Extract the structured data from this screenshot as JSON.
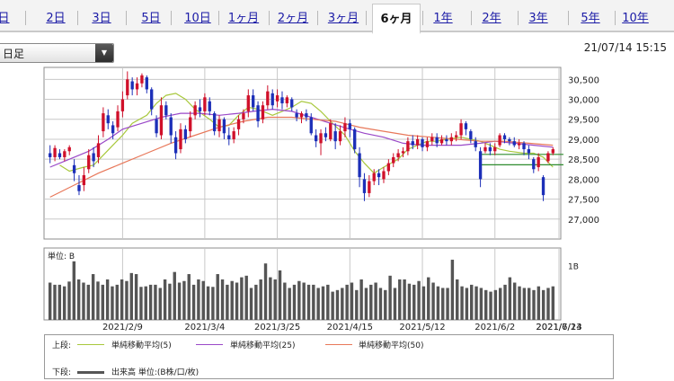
{
  "tabs": [
    {
      "label": "日",
      "active": false
    },
    {
      "label": "2日",
      "active": false
    },
    {
      "label": "3日",
      "active": false
    },
    {
      "label": "5日",
      "active": false
    },
    {
      "label": "10日",
      "active": false
    },
    {
      "label": "1ヶ月",
      "active": false
    },
    {
      "label": "2ヶ月",
      "active": false
    },
    {
      "label": "3ヶ月",
      "active": false
    },
    {
      "label": "6ヶ月",
      "active": true
    },
    {
      "label": "1年",
      "active": false
    },
    {
      "label": "2年",
      "active": false
    },
    {
      "label": "3年",
      "active": false
    },
    {
      "label": "5年",
      "active": false
    },
    {
      "label": "10年",
      "active": false
    }
  ],
  "period_select": {
    "value": "日足",
    "arrow_icon": "triangle-down-icon"
  },
  "timestamp": "21/07/14 15:15",
  "legend": {
    "upper_label": "上段:",
    "lower_label": "下段:",
    "items": [
      {
        "label": "単純移動平均(5)",
        "color": "#a8c83c"
      },
      {
        "label": "単純移動平均(25)",
        "color": "#9a48c8"
      },
      {
        "label": "単純移動平均(50)",
        "color": "#e8785a"
      }
    ],
    "volume_label": "出来高 単位:(B株/口/枚)",
    "volume_color": "#555555"
  },
  "chart_data": {
    "type": "candlestick",
    "price": {
      "ylim": [
        26500,
        30800
      ],
      "y_ticks": [
        "30,500",
        "30,000",
        "29,500",
        "29,000",
        "28,500",
        "28,000",
        "27,500",
        "27,000"
      ],
      "tick_values": [
        30500,
        30000,
        29500,
        29000,
        28500,
        28000,
        27500,
        27000
      ],
      "up_color": "#d0102a",
      "down_color": "#1c2fb8",
      "candles": [
        [
          28650,
          28550,
          28850,
          28400
        ],
        [
          28550,
          28780,
          28850,
          28450
        ],
        [
          28650,
          28550,
          28750,
          28500
        ],
        [
          28550,
          28700,
          28750,
          28450
        ],
        [
          28700,
          28800,
          28850,
          28600
        ],
        [
          28350,
          28150,
          28500,
          27950
        ],
        [
          27850,
          27700,
          28100,
          27600
        ],
        [
          27850,
          28100,
          28300,
          27700
        ],
        [
          28250,
          28600,
          28750,
          28150
        ],
        [
          28650,
          28450,
          28800,
          28300
        ],
        [
          28550,
          28900,
          29100,
          28400
        ],
        [
          29200,
          29650,
          29800,
          29050
        ],
        [
          29600,
          29400,
          29750,
          29250
        ],
        [
          29350,
          29150,
          29450,
          29000
        ],
        [
          29300,
          29700,
          29850,
          29200
        ],
        [
          29700,
          30000,
          30200,
          29550
        ],
        [
          30100,
          30500,
          30700,
          30000
        ],
        [
          30450,
          30250,
          30550,
          30100
        ],
        [
          30250,
          30400,
          30550,
          30100
        ],
        [
          30400,
          30600,
          30650,
          30300
        ],
        [
          30550,
          30250,
          30600,
          30150
        ],
        [
          30250,
          29750,
          30300,
          29600
        ],
        [
          29500,
          29150,
          29600,
          29050
        ],
        [
          29100,
          29850,
          30050,
          29000
        ],
        [
          29850,
          29600,
          29950,
          29500
        ],
        [
          29550,
          29100,
          29650,
          28900
        ],
        [
          29050,
          28650,
          29200,
          28500
        ],
        [
          28750,
          29250,
          29400,
          28650
        ],
        [
          29250,
          29000,
          29350,
          28900
        ],
        [
          29200,
          29550,
          29700,
          29050
        ],
        [
          29600,
          29850,
          29950,
          29500
        ],
        [
          29800,
          29700,
          30000,
          29550
        ],
        [
          29700,
          30050,
          30150,
          29600
        ],
        [
          29950,
          29700,
          30050,
          29600
        ],
        [
          29650,
          29200,
          29700,
          29100
        ],
        [
          29200,
          29500,
          29600,
          29050
        ],
        [
          29500,
          29150,
          29550,
          29000
        ],
        [
          29100,
          29000,
          29300,
          28850
        ],
        [
          29000,
          29200,
          29300,
          28900
        ],
        [
          29250,
          29500,
          29600,
          29100
        ],
        [
          29500,
          29650,
          29750,
          29400
        ],
        [
          29700,
          30100,
          30250,
          29550
        ],
        [
          30100,
          29800,
          30250,
          29700
        ],
        [
          29850,
          29450,
          29950,
          29300
        ],
        [
          29500,
          29850,
          29950,
          29400
        ],
        [
          29850,
          30200,
          30350,
          29750
        ],
        [
          30150,
          29850,
          30250,
          29750
        ],
        [
          29950,
          30100,
          30250,
          29800
        ],
        [
          30050,
          29900,
          30200,
          29750
        ],
        [
          29900,
          30050,
          30100,
          29800
        ],
        [
          30000,
          29800,
          30050,
          29700
        ],
        [
          29650,
          29550,
          29750,
          29450
        ],
        [
          29550,
          29650,
          29700,
          29400
        ],
        [
          29650,
          29550,
          29750,
          29450
        ],
        [
          29550,
          29150,
          29650,
          29100
        ],
        [
          29100,
          28950,
          29250,
          28800
        ],
        [
          28900,
          29150,
          29250,
          28600
        ],
        [
          29150,
          29050,
          29300,
          28950
        ],
        [
          29000,
          29400,
          29500,
          28950
        ],
        [
          29200,
          28950,
          29400,
          28750
        ],
        [
          28950,
          29200,
          29350,
          28850
        ],
        [
          29200,
          29400,
          29550,
          29050
        ],
        [
          29400,
          29250,
          29500,
          29050
        ],
        [
          29250,
          28750,
          29300,
          28650
        ],
        [
          28650,
          28050,
          28800,
          27800
        ],
        [
          28000,
          27650,
          28150,
          27450
        ],
        [
          27650,
          27950,
          28100,
          27550
        ],
        [
          27950,
          28150,
          28250,
          27850
        ],
        [
          28150,
          28050,
          28250,
          27850
        ],
        [
          28000,
          28200,
          28300,
          27900
        ],
        [
          28200,
          28400,
          28500,
          28100
        ],
        [
          28400,
          28550,
          28650,
          28300
        ],
        [
          28550,
          28650,
          28750,
          28450
        ],
        [
          28650,
          28700,
          28800,
          28550
        ],
        [
          28700,
          28950,
          29050,
          28600
        ],
        [
          28950,
          28850,
          29100,
          28750
        ],
        [
          28850,
          29000,
          29100,
          28750
        ],
        [
          29000,
          28800,
          29050,
          28700
        ],
        [
          28800,
          28950,
          29050,
          28700
        ],
        [
          28950,
          29050,
          29150,
          28850
        ],
        [
          29050,
          28900,
          29150,
          28800
        ],
        [
          28900,
          29000,
          29100,
          28850
        ],
        [
          29000,
          28950,
          29100,
          28850
        ],
        [
          28950,
          29050,
          29150,
          28850
        ],
        [
          29050,
          29100,
          29200,
          28950
        ],
        [
          29100,
          29400,
          29500,
          29000
        ],
        [
          29400,
          29250,
          29450,
          29100
        ],
        [
          29200,
          29000,
          29250,
          28900
        ],
        [
          28950,
          28800,
          29050,
          28700
        ],
        [
          28700,
          28000,
          28800,
          27800
        ],
        [
          28700,
          28800,
          28900,
          28650
        ],
        [
          28800,
          28700,
          28900,
          28600
        ],
        [
          28700,
          28800,
          28900,
          28600
        ],
        [
          28850,
          29100,
          29150,
          28800
        ],
        [
          29100,
          29000,
          29150,
          28900
        ],
        [
          29000,
          28950,
          29050,
          28850
        ],
        [
          28950,
          28850,
          29050,
          28800
        ],
        [
          28850,
          28900,
          29000,
          28750
        ],
        [
          28900,
          28750,
          28950,
          28600
        ],
        [
          28750,
          28650,
          28850,
          28500
        ],
        [
          28500,
          28250,
          28550,
          28150
        ],
        [
          28300,
          28550,
          28650,
          28200
        ],
        [
          28050,
          27600,
          28100,
          27450
        ],
        [
          28450,
          28650,
          28700,
          28400
        ],
        [
          28650,
          28750,
          28800,
          28600
        ]
      ]
    },
    "moving_average_lines": [
      [
        null,
        28350,
        28200,
        28300,
        28350,
        28600,
        28850,
        29100,
        29400,
        29600,
        29900,
        30100,
        30150,
        30000,
        29750,
        29500,
        29300,
        29350,
        29600,
        29800,
        29750,
        29600,
        29700,
        29800,
        29950,
        29900,
        29700,
        29450,
        29100,
        28700,
        28400,
        28150,
        28300,
        28500,
        28750,
        28850,
        28950,
        28950,
        29000,
        29050,
        29000,
        28950,
        28850,
        28750,
        28700,
        28650,
        28650,
        28550,
        28300
      ],
      [
        28300,
        28500,
        28700,
        29000,
        29250,
        29400,
        29550,
        29650,
        29650,
        29600,
        29650,
        29700,
        29750,
        29700,
        29550,
        29400,
        29250,
        29150,
        29050,
        28900,
        28850,
        28850,
        28850,
        28900,
        28950,
        28900,
        28850,
        28800
      ],
      [
        27550,
        27850,
        28150,
        28400,
        28650,
        28900,
        29100,
        29300,
        29450,
        29550,
        29550,
        29500,
        29450,
        29300,
        29200,
        29100,
        29050,
        29000,
        28950,
        28950,
        28900,
        28850
      ]
    ],
    "volume": {
      "unit_label": "単位: B",
      "y_tick_label": "1B",
      "y_tick_value": 1.0,
      "ylim": [
        0,
        1.35
      ],
      "values": [
        0.7,
        0.66,
        0.66,
        0.63,
        0.72,
        1.1,
        0.76,
        0.7,
        0.66,
        0.86,
        0.72,
        0.66,
        0.76,
        0.63,
        0.66,
        0.76,
        0.73,
        0.88,
        0.86,
        0.62,
        0.63,
        0.66,
        0.66,
        0.6,
        0.76,
        0.68,
        0.9,
        0.7,
        0.73,
        0.86,
        0.66,
        0.76,
        0.73,
        0.63,
        0.62,
        0.86,
        0.76,
        0.66,
        0.73,
        0.7,
        0.8,
        0.83,
        0.6,
        0.66,
        0.76,
        1.06,
        0.8,
        0.76,
        0.93,
        0.7,
        0.6,
        0.66,
        0.73,
        0.7,
        0.66,
        0.66,
        0.6,
        0.63,
        0.66,
        0.53,
        0.56,
        0.6,
        0.66,
        0.7,
        0.56,
        0.76,
        0.6,
        0.66,
        0.7,
        0.6,
        0.56,
        0.83,
        0.6,
        0.76,
        0.76,
        0.68,
        0.66,
        0.73,
        0.63,
        0.8,
        0.7,
        0.63,
        0.6,
        0.6,
        1.13,
        0.76,
        0.63,
        0.6,
        0.66,
        0.63,
        0.6,
        0.56,
        0.53,
        0.56,
        0.6,
        0.66,
        0.8,
        0.7,
        0.63,
        0.6,
        0.6,
        0.56,
        0.63,
        0.56,
        0.6,
        0.63
      ]
    },
    "x_ticks": [
      {
        "label": "2021/2/9",
        "index": 15
      },
      {
        "label": "2021/3/4",
        "index": 32
      },
      {
        "label": "2021/3/25",
        "index": 47
      },
      {
        "label": "2021/4/15",
        "index": 62
      },
      {
        "label": "2021/5/12",
        "index": 77
      },
      {
        "label": "2021/6/2",
        "index": 92
      },
      {
        "label": "2021/6/23",
        "index": 108
      },
      {
        "label": "2021/7/14",
        "index": 123
      }
    ],
    "horizontal_marks": [
      {
        "value": 28620,
        "color": "#2e8b2e"
      },
      {
        "value": 28360,
        "color": "#2e8b2e"
      }
    ]
  }
}
